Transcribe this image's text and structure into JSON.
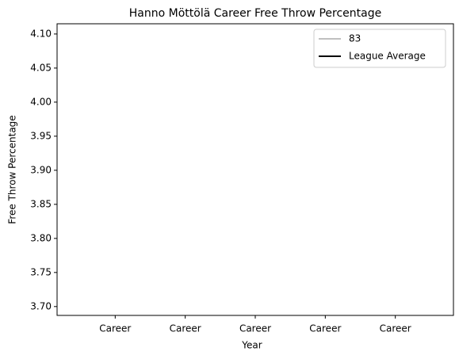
{
  "chart_data": {
    "type": "line",
    "title": "Hanno Möttölä Career Free Throw Percentage",
    "x_label": "Year",
    "y_label": "Free Throw Percentage",
    "categories": [
      "Career",
      "Career",
      "Career",
      "Career",
      "Career"
    ],
    "series": [
      {
        "name": "83",
        "color": "#c0c0c0",
        "values": [
          null,
          null,
          null,
          null,
          null
        ]
      },
      {
        "name": "League Average",
        "color": "#000000",
        "values": [
          null,
          null,
          null,
          null,
          null
        ]
      }
    ],
    "ylim": [
      3.687,
      4.115
    ],
    "yticks": [
      {
        "value": 3.7,
        "label": "3.70"
      },
      {
        "value": 3.75,
        "label": "3.75"
      },
      {
        "value": 3.8,
        "label": "3.80"
      },
      {
        "value": 3.85,
        "label": "3.85"
      },
      {
        "value": 3.9,
        "label": "3.90"
      },
      {
        "value": 3.95,
        "label": "3.95"
      },
      {
        "value": 4.0,
        "label": "4.00"
      },
      {
        "value": 4.05,
        "label": "4.05"
      },
      {
        "value": 4.1,
        "label": "4.10"
      }
    ],
    "legend": "upper right",
    "grid": false
  }
}
